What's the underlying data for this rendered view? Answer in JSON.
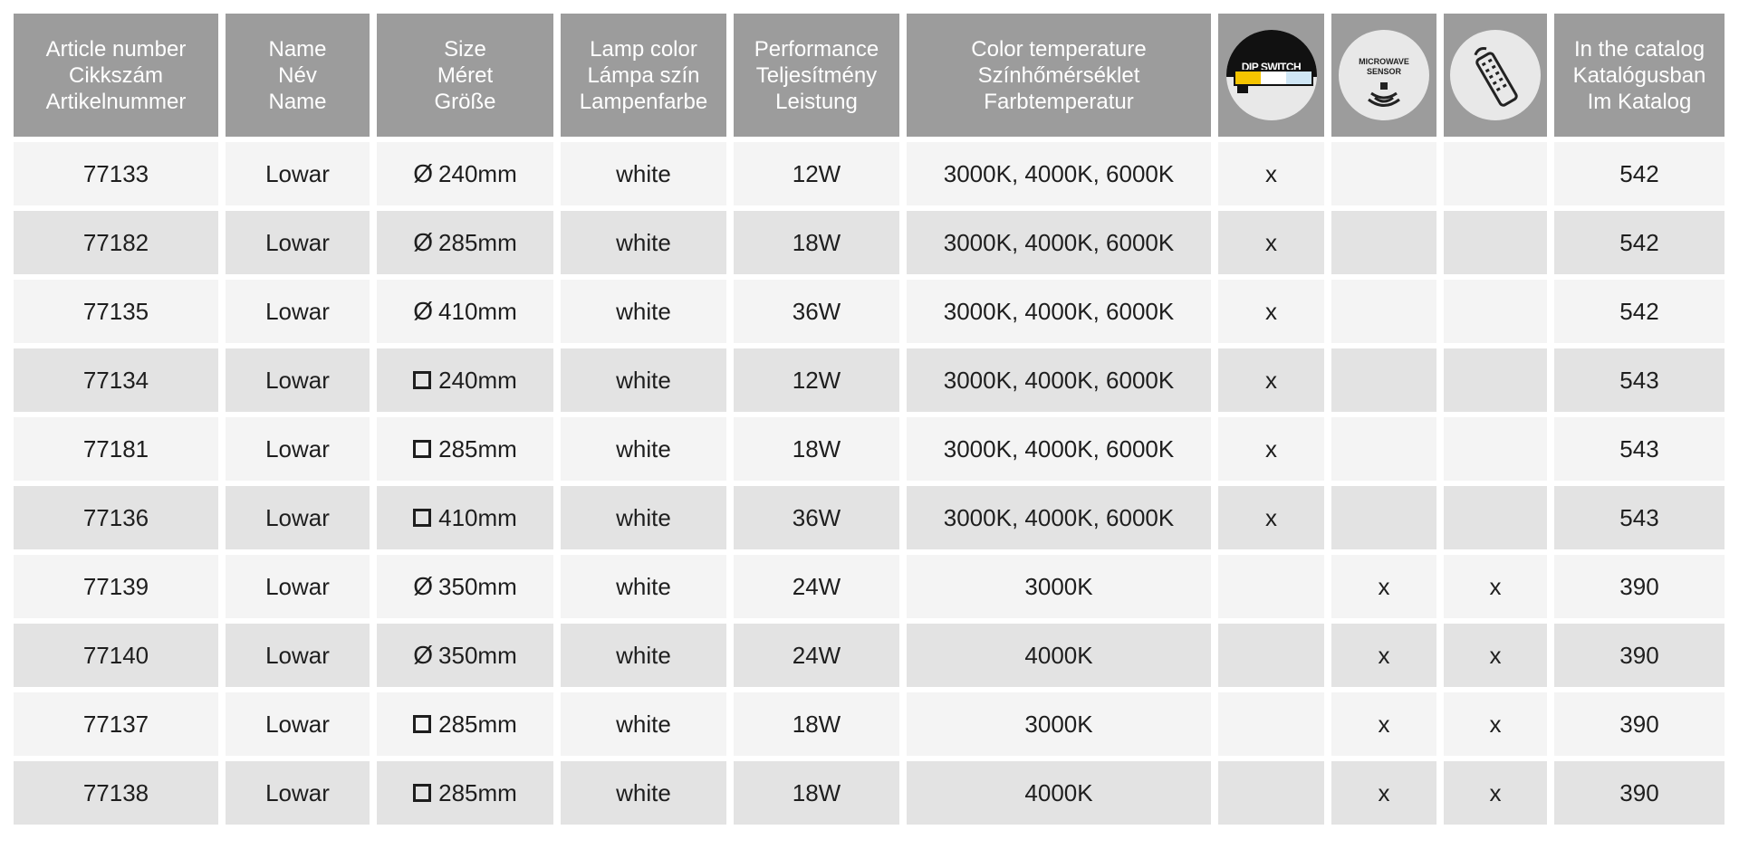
{
  "headers": [
    {
      "lines": [
        "Article number",
        "Cikkszám",
        "Artikelnummer"
      ]
    },
    {
      "lines": [
        "Name",
        "Név",
        "Name"
      ]
    },
    {
      "lines": [
        "Size",
        "Méret",
        "Größe"
      ]
    },
    {
      "lines": [
        "Lamp color",
        "Lámpa szín",
        "Lampenfarbe"
      ]
    },
    {
      "lines": [
        "Performance",
        "Teljesítmény",
        "Leistung"
      ]
    },
    {
      "lines": [
        "Color temperature",
        "Színhőmérséklet",
        "Farbtemperatur"
      ]
    },
    {
      "icon": "dip-switch-icon",
      "text": "DIP SWITCH",
      "colors": [
        "#f5c400",
        "#ffffff",
        "#cfe6f5"
      ]
    },
    {
      "icon": "microwave-sensor-icon",
      "text": "MICROWAVE SENSOR"
    },
    {
      "icon": "remote-control-icon"
    },
    {
      "lines": [
        "In the catalog",
        "Katalógusban",
        "Im Katalog"
      ]
    }
  ],
  "rows": [
    {
      "article": "77133",
      "name": "Lowar",
      "shape": "diameter",
      "size": "240mm",
      "color": "white",
      "power": "12W",
      "temp": "3000K, 4000K, 6000K",
      "dip": "x",
      "mw": "",
      "remote": "",
      "catalog": "542"
    },
    {
      "article": "77182",
      "name": "Lowar",
      "shape": "diameter",
      "size": "285mm",
      "color": "white",
      "power": "18W",
      "temp": "3000K, 4000K, 6000K",
      "dip": "x",
      "mw": "",
      "remote": "",
      "catalog": "542"
    },
    {
      "article": "77135",
      "name": "Lowar",
      "shape": "diameter",
      "size": "410mm",
      "color": "white",
      "power": "36W",
      "temp": "3000K, 4000K, 6000K",
      "dip": "x",
      "mw": "",
      "remote": "",
      "catalog": "542"
    },
    {
      "article": "77134",
      "name": "Lowar",
      "shape": "square",
      "size": "240mm",
      "color": "white",
      "power": "12W",
      "temp": "3000K, 4000K, 6000K",
      "dip": "x",
      "mw": "",
      "remote": "",
      "catalog": "543"
    },
    {
      "article": "77181",
      "name": "Lowar",
      "shape": "square",
      "size": "285mm",
      "color": "white",
      "power": "18W",
      "temp": "3000K, 4000K, 6000K",
      "dip": "x",
      "mw": "",
      "remote": "",
      "catalog": "543"
    },
    {
      "article": "77136",
      "name": "Lowar",
      "shape": "square",
      "size": "410mm",
      "color": "white",
      "power": "36W",
      "temp": "3000K, 4000K, 6000K",
      "dip": "x",
      "mw": "",
      "remote": "",
      "catalog": "543"
    },
    {
      "article": "77139",
      "name": "Lowar",
      "shape": "diameter",
      "size": "350mm",
      "color": "white",
      "power": "24W",
      "temp": "3000K",
      "dip": "",
      "mw": "x",
      "remote": "x",
      "catalog": "390"
    },
    {
      "article": "77140",
      "name": "Lowar",
      "shape": "diameter",
      "size": "350mm",
      "color": "white",
      "power": "24W",
      "temp": "4000K",
      "dip": "",
      "mw": "x",
      "remote": "x",
      "catalog": "390"
    },
    {
      "article": "77137",
      "name": "Lowar",
      "shape": "square",
      "size": "285mm",
      "color": "white",
      "power": "18W",
      "temp": "3000K",
      "dip": "",
      "mw": "x",
      "remote": "x",
      "catalog": "390"
    },
    {
      "article": "77138",
      "name": "Lowar",
      "shape": "square",
      "size": "285mm",
      "color": "white",
      "power": "18W",
      "temp": "4000K",
      "dip": "",
      "mw": "x",
      "remote": "x",
      "catalog": "390"
    }
  ],
  "symbols": {
    "diameter": "Ø"
  },
  "colors": {
    "header_bg": "#9c9c9c",
    "row_light": "#f4f4f4",
    "row_dark": "#e3e3e3"
  }
}
